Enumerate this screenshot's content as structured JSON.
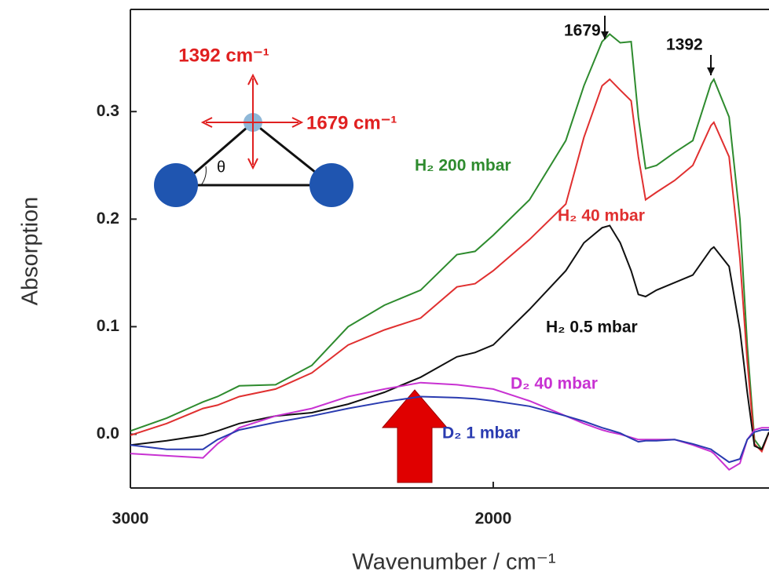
{
  "chart_data": {
    "type": "line",
    "x_label": "Wavenumber / cm⁻¹",
    "y_label": "Absorption",
    "xlim": [
      3000,
      1240
    ],
    "ylim": [
      -0.05,
      0.395
    ],
    "xticks": [
      3000,
      2000
    ],
    "yticks": [
      {
        "value": 0,
        "label": "0.0"
      },
      0.1,
      0.2,
      0.3
    ],
    "x": [
      3000,
      2900,
      2800,
      2760,
      2700,
      2600,
      2500,
      2400,
      2300,
      2200,
      2100,
      2050,
      2000,
      1900,
      1800,
      1750,
      1700,
      1679,
      1650,
      1620,
      1600,
      1580,
      1550,
      1500,
      1450,
      1400,
      1392,
      1350,
      1320,
      1300,
      1280,
      1260,
      1240
    ],
    "series": [
      {
        "name": "H₂ 200 mbar",
        "color": "#2e8b2e",
        "values": [
          0.003,
          0.015,
          0.03,
          0.035,
          0.045,
          0.046,
          0.064,
          0.1,
          0.12,
          0.134,
          0.167,
          0.17,
          0.185,
          0.218,
          0.273,
          0.324,
          0.365,
          0.372,
          0.364,
          0.365,
          0.295,
          0.247,
          0.25,
          0.262,
          0.273,
          0.326,
          0.33,
          0.295,
          0.2,
          0.083,
          -0.005,
          -0.014,
          0.002
        ]
      },
      {
        "name": "H₂ 40 mbar",
        "color": "#e03030",
        "values": [
          -0.001,
          0.01,
          0.024,
          0.027,
          0.035,
          0.042,
          0.057,
          0.083,
          0.097,
          0.108,
          0.137,
          0.14,
          0.152,
          0.181,
          0.214,
          0.276,
          0.324,
          0.33,
          0.32,
          0.31,
          0.258,
          0.218,
          0.225,
          0.236,
          0.25,
          0.287,
          0.29,
          0.258,
          0.163,
          0.068,
          -0.009,
          -0.016,
          0.002
        ]
      },
      {
        "name": "H₂ 0.5 mbar",
        "color": "#111111",
        "values": [
          -0.01,
          -0.006,
          -0.001,
          0.003,
          0.01,
          0.017,
          0.02,
          0.028,
          0.039,
          0.053,
          0.072,
          0.076,
          0.083,
          0.116,
          0.152,
          0.178,
          0.192,
          0.194,
          0.178,
          0.152,
          0.13,
          0.128,
          0.134,
          0.141,
          0.148,
          0.172,
          0.174,
          0.156,
          0.097,
          0.039,
          -0.011,
          -0.014,
          0.002
        ]
      },
      {
        "name": "D₂ 40 mbar",
        "color": "#c832d2",
        "values": [
          -0.018,
          -0.02,
          -0.022,
          -0.009,
          0.006,
          0.017,
          0.024,
          0.035,
          0.042,
          0.048,
          0.046,
          0.044,
          0.042,
          0.031,
          0.017,
          0.01,
          0.004,
          0.002,
          0.0,
          -0.003,
          -0.005,
          -0.005,
          -0.005,
          -0.005,
          -0.01,
          -0.016,
          -0.018,
          -0.033,
          -0.027,
          -0.005,
          0.004,
          0.006,
          0.006
        ]
      },
      {
        "name": "D₂ 1 mbar",
        "color": "#2a3bb0",
        "values": [
          -0.01,
          -0.014,
          -0.014,
          -0.005,
          0.004,
          0.011,
          0.017,
          0.024,
          0.03,
          0.035,
          0.034,
          0.033,
          0.031,
          0.026,
          0.017,
          0.012,
          0.006,
          0.004,
          0.001,
          -0.004,
          -0.007,
          -0.006,
          -0.006,
          -0.005,
          -0.009,
          -0.014,
          -0.016,
          -0.026,
          -0.023,
          -0.005,
          0.002,
          0.004,
          0.004
        ]
      }
    ],
    "annotations": [
      "1679",
      "1392"
    ],
    "inset": {
      "vertical_mode": "1392 cm⁻¹",
      "horizontal_mode": "1679 cm⁻¹",
      "angle": "θ"
    }
  }
}
